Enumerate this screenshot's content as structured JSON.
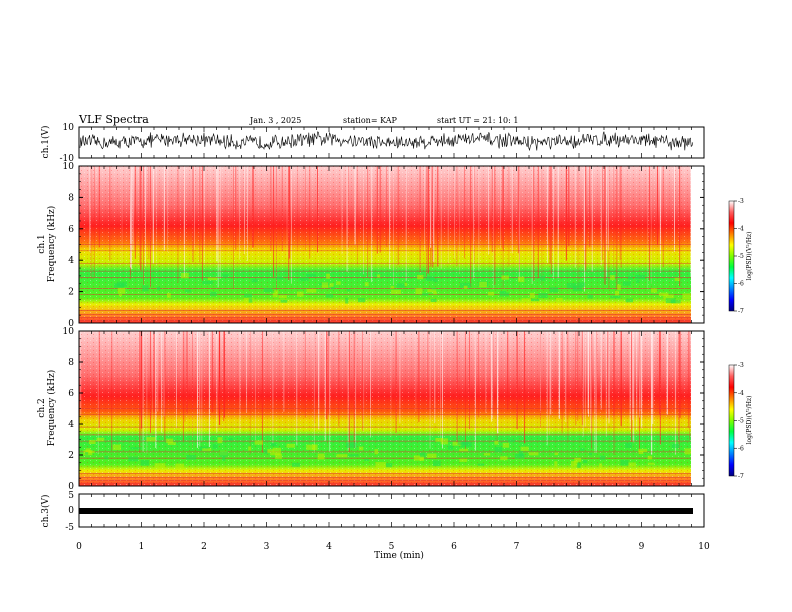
{
  "header": {
    "title": "VLF Spectra",
    "date": "Jan. 3 , 2025",
    "station": "station= KAP",
    "start": "start UT = 21: 10: 1"
  },
  "colorbar": {
    "label": "log(PSD)(V²/Hz)",
    "ticks": [
      "-3",
      "-4",
      "-5",
      "-6",
      "-7"
    ],
    "colors": [
      "#000080",
      "#0000ff",
      "#0080ff",
      "#00ffff",
      "#00ff40",
      "#80ff00",
      "#ffff00",
      "#ff8000",
      "#ff0000",
      "#ff6060",
      "#ffffff"
    ]
  },
  "chart_data": [
    {
      "type": "line",
      "name": "ch1-waveform",
      "ylabel": "ch.1(V)",
      "ylim": [
        -10,
        10
      ],
      "yticks": [
        "10",
        "-10"
      ],
      "xlim": [
        0,
        10
      ],
      "data_end_min": 9.83,
      "amplitude_range_V": [
        -3,
        8
      ]
    },
    {
      "type": "heatmap",
      "name": "ch1-spectrogram",
      "ylabel": "ch.1\nFrequency (kHz)",
      "ylim": [
        0,
        10
      ],
      "yticks": [
        "0",
        "2",
        "4",
        "6",
        "8",
        "10"
      ],
      "xlim": [
        0,
        10
      ],
      "data_end_min": 9.83,
      "bands": [
        {
          "from": 0,
          "to": 0.5,
          "level": "red"
        },
        {
          "from": 0.5,
          "to": 1.2,
          "level": "yellow"
        },
        {
          "from": 1.2,
          "to": 3.6,
          "level": "green"
        },
        {
          "from": 3.6,
          "to": 5.0,
          "level": "yellow"
        },
        {
          "from": 5.0,
          "to": 6.5,
          "level": "red"
        },
        {
          "from": 6.5,
          "to": 10,
          "level": "pink"
        }
      ]
    },
    {
      "type": "heatmap",
      "name": "ch2-spectrogram",
      "ylabel": "ch.2\nFrequency (kHz)",
      "ylim": [
        0,
        10
      ],
      "yticks": [
        "0",
        "2",
        "4",
        "6",
        "8",
        "10"
      ],
      "xlim": [
        0,
        10
      ],
      "data_end_min": 9.83,
      "bands": [
        {
          "from": 0,
          "to": 0.5,
          "level": "red"
        },
        {
          "from": 0.5,
          "to": 1.0,
          "level": "yellow"
        },
        {
          "from": 1.0,
          "to": 3.5,
          "level": "green"
        },
        {
          "from": 3.5,
          "to": 4.5,
          "level": "yellow"
        },
        {
          "from": 4.5,
          "to": 6.0,
          "level": "red"
        },
        {
          "from": 6.0,
          "to": 10,
          "level": "pink"
        }
      ]
    },
    {
      "type": "line",
      "name": "ch3-waveform",
      "ylabel": "ch.3(V)",
      "ylim": [
        -5,
        5
      ],
      "yticks": [
        "5",
        "0",
        "-5"
      ],
      "xlim": [
        0,
        10
      ],
      "data_end_min": 9.83,
      "amplitude_range_V": [
        -1,
        0
      ]
    }
  ],
  "xaxis": {
    "label": "Time (min)",
    "ticks": [
      "0",
      "1",
      "2",
      "3",
      "4",
      "5",
      "6",
      "7",
      "8",
      "9",
      "10"
    ]
  }
}
